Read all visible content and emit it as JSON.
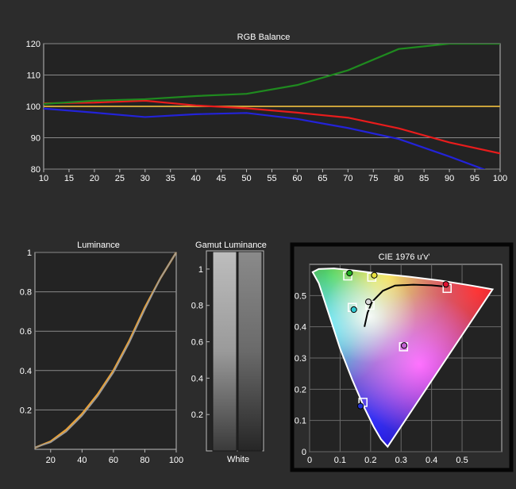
{
  "chart_data": [
    {
      "type": "line",
      "title": "RGB Balance",
      "xlabel": "",
      "ylabel": "",
      "x": [
        10,
        20,
        30,
        40,
        50,
        60,
        70,
        80,
        90,
        100
      ],
      "xlim": [
        10,
        100
      ],
      "ylim": [
        80,
        120
      ],
      "x_ticks": [
        "10",
        "15",
        "20",
        "25",
        "30",
        "35",
        "40",
        "45",
        "50",
        "55",
        "60",
        "65",
        "70",
        "75",
        "80",
        "85",
        "90",
        "95",
        "100"
      ],
      "y_ticks": [
        "80",
        "90",
        "100",
        "110",
        "120"
      ],
      "grid": true,
      "reference_line": 100,
      "colors": {
        "red": "#e81c1c",
        "green": "#1f8a1f",
        "blue": "#2323d8",
        "reference": "#c9a23a"
      },
      "series": [
        {
          "values": [
            101.0,
            101.2,
            101.8,
            100.3,
            99.4,
            98.0,
            96.4,
            93.0,
            88.5,
            85.0
          ]
        },
        {
          "values": [
            100.8,
            101.8,
            102.3,
            103.3,
            104.0,
            106.8,
            111.5,
            118.3,
            120.0,
            120.0
          ]
        },
        {
          "values": [
            99.3,
            98.0,
            96.6,
            97.5,
            97.9,
            96.0,
            93.1,
            89.6,
            84.0,
            78.0
          ]
        }
      ]
    },
    {
      "type": "line",
      "title": "Luminance",
      "xlabel": "",
      "ylabel": "",
      "x": [
        10,
        20,
        30,
        40,
        50,
        60,
        70,
        80,
        90,
        100
      ],
      "xlim": [
        10,
        100
      ],
      "ylim": [
        0,
        1
      ],
      "x_ticks": [
        "20",
        "40",
        "60",
        "80",
        "100"
      ],
      "y_ticks": [
        "0.2",
        "0.4",
        "0.6",
        "0.8",
        "1"
      ],
      "grid": true,
      "colors": {
        "target": "#e8a23a",
        "measured": "#9a9a9a"
      },
      "series": [
        {
          "values": [
            0.008,
            0.04,
            0.1,
            0.18,
            0.28,
            0.4,
            0.55,
            0.72,
            0.87,
            1.0
          ]
        },
        {
          "values": [
            0.009,
            0.035,
            0.09,
            0.17,
            0.27,
            0.39,
            0.54,
            0.71,
            0.87,
            1.0
          ]
        }
      ]
    },
    {
      "type": "bar",
      "title": "Gamut Luminance",
      "xlabel": "White",
      "ylabel": "",
      "ylim": [
        0,
        1.1
      ],
      "y_ticks": [
        "0.2",
        "0.4",
        "0.6",
        "0.8",
        "1"
      ],
      "categories": [
        "White"
      ],
      "series": [
        {
          "values": [
            1.0
          ]
        },
        {
          "values": [
            1.0
          ]
        }
      ]
    },
    {
      "type": "scatter",
      "title": "CIE 1976 u'v'",
      "xlabel": "",
      "ylabel": "",
      "xlim": [
        0,
        0.63
      ],
      "ylim": [
        0,
        0.6
      ],
      "x_ticks": [
        "0",
        "0.1",
        "0.2",
        "0.3",
        "0.4",
        "0.5"
      ],
      "y_ticks": [
        "0",
        "0.1",
        "0.2",
        "0.3",
        "0.4",
        "0.5"
      ],
      "grid": true,
      "targets": [
        {
          "u": 0.451,
          "v": 0.523
        },
        {
          "u": 0.125,
          "v": 0.563
        },
        {
          "u": 0.175,
          "v": 0.158
        },
        {
          "u": 0.204,
          "v": 0.559
        },
        {
          "u": 0.14,
          "v": 0.462
        },
        {
          "u": 0.308,
          "v": 0.336
        },
        {
          "u": 0.198,
          "v": 0.469
        }
      ],
      "measured": [
        {
          "u": 0.447,
          "v": 0.536,
          "color": "#e01030"
        },
        {
          "u": 0.131,
          "v": 0.572,
          "color": "#22b022"
        },
        {
          "u": 0.167,
          "v": 0.146,
          "color": "#2030d0"
        },
        {
          "u": 0.212,
          "v": 0.565,
          "color": "#e8e040"
        },
        {
          "u": 0.145,
          "v": 0.455,
          "color": "#30c8d0"
        },
        {
          "u": 0.31,
          "v": 0.34,
          "color": "#c060d0"
        },
        {
          "u": 0.193,
          "v": 0.48,
          "color": "#d8d8d8"
        }
      ]
    }
  ]
}
